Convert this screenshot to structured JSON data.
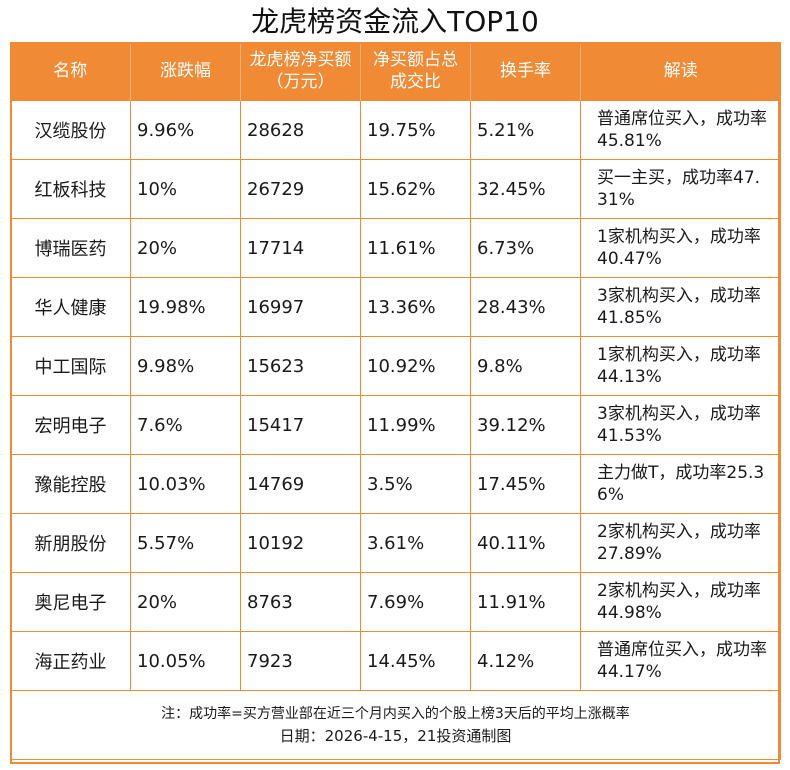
{
  "title": "龙虎榜资金流入TOP10",
  "headers": [
    "名称",
    "涨跌幅",
    "龙虎榜净买额（万元）",
    "净买额占总成交比",
    "换手率",
    "解读"
  ],
  "rows": [
    {
      "name": "汉缆股份",
      "change": "9.96%",
      "net_buy": "28628",
      "ratio": "19.75%",
      "turnover": "5.21%",
      "note": "普通席位买入，成功率45.81%"
    },
    {
      "name": "红板科技",
      "change": "10%",
      "net_buy": "26729",
      "ratio": "15.62%",
      "turnover": "32.45%",
      "note": "买一主买，成功率47.31%"
    },
    {
      "name": "博瑞医药",
      "change": "20%",
      "net_buy": "17714",
      "ratio": "11.61%",
      "turnover": "6.73%",
      "note": "1家机构买入，成功率40.47%"
    },
    {
      "name": "华人健康",
      "change": "19.98%",
      "net_buy": "16997",
      "ratio": "13.36%",
      "turnover": "28.43%",
      "note": "3家机构买入，成功率41.85%"
    },
    {
      "name": "中工国际",
      "change": "9.98%",
      "net_buy": "15623",
      "ratio": "10.92%",
      "turnover": "9.8%",
      "note": "1家机构买入，成功率44.13%"
    },
    {
      "name": "宏明电子",
      "change": "7.6%",
      "net_buy": "15417",
      "ratio": "11.99%",
      "turnover": "39.12%",
      "note": "3家机构买入，成功率41.53%"
    },
    {
      "name": "豫能控股",
      "change": "10.03%",
      "net_buy": "14769",
      "ratio": "3.5%",
      "turnover": "17.45%",
      "note": "主力做T，成功率25.36%"
    },
    {
      "name": "新朋股份",
      "change": "5.57%",
      "net_buy": "10192",
      "ratio": "3.61%",
      "turnover": "40.11%",
      "note": "2家机构买入，成功率27.89%"
    },
    {
      "name": "奥尼电子",
      "change": "20%",
      "net_buy": "8763",
      "ratio": "7.69%",
      "turnover": "11.91%",
      "note": "2家机构买入，成功率44.98%"
    },
    {
      "name": "海正药业",
      "change": "10.05%",
      "net_buy": "7923",
      "ratio": "14.45%",
      "turnover": "4.12%",
      "note": "普通席位买入，成功率44.17%"
    }
  ],
  "footnote": "注：成功率=买方营业部在近三个月内买入的个股上榜3天后的平均上涨概率",
  "source": "日期：2026-4-15，21投资通制图",
  "colors": {
    "accent": "#f08a34",
    "header_text": "#ffffff"
  }
}
